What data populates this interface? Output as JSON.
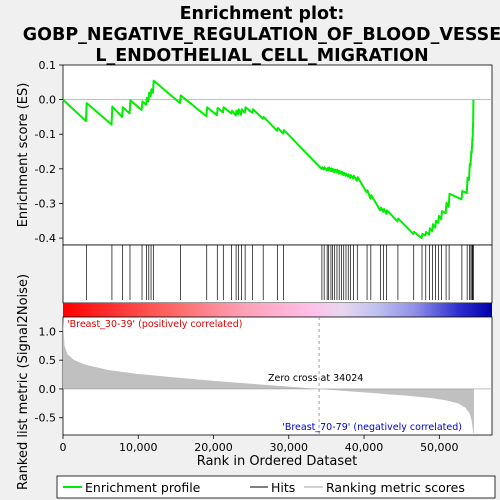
{
  "chart_data": {
    "type": "line",
    "title_lines": [
      "Enrichment plot:",
      "GOBP_NEGATIVE_REGULATION_OF_BLOOD_VESSE",
      "L_ENDOTHELIAL_CELL_MIGRATION"
    ],
    "xlabel": "Rank in Ordered Dataset",
    "ylabel_top": "Enrichment score (ES)",
    "ylabel_bottom": "Ranked list metric (Signal2Noise)",
    "xlim": [
      0,
      57000
    ],
    "x_ticks": [
      0,
      10000,
      20000,
      30000,
      40000,
      50000
    ],
    "x_tick_labels": [
      "0",
      "10,000",
      "20,000",
      "30,000",
      "40,000",
      "50,000"
    ],
    "es_ylim": [
      -0.42,
      0.1
    ],
    "es_ticks": [
      0.1,
      0.0,
      -0.1,
      -0.2,
      -0.3,
      -0.4
    ],
    "es_tick_labels": [
      "0.1",
      "0.0",
      "-0.1",
      "-0.2",
      "-0.3",
      "-0.4"
    ],
    "metric_ylim": [
      -0.8,
      1.25
    ],
    "metric_ticks": [
      1.0,
      0.5,
      0.0,
      -0.5
    ],
    "metric_tick_labels": [
      "1.0",
      "0.5",
      "0.0",
      "-0.5"
    ],
    "colors": {
      "es_line": "#00ee00",
      "hit": "#000000",
      "metric_fill": "#c0c0c0",
      "pos_label": "#dd0000",
      "neg_label": "#0000cc",
      "zero_line": "#888888"
    },
    "hits": [
      3100,
      6500,
      7900,
      8900,
      10500,
      11100,
      11400,
      11700,
      12000,
      15600,
      19100,
      20500,
      21300,
      22400,
      23000,
      23300,
      23700,
      24200,
      25200,
      26600,
      28500,
      29300,
      34400,
      34700,
      35100,
      35300,
      35600,
      35800,
      36100,
      36400,
      36700,
      37000,
      37300,
      37600,
      37900,
      38200,
      38600,
      39100,
      40400,
      40900,
      42200,
      42600,
      43000,
      44500,
      46600,
      47700,
      48200,
      48700,
      49100,
      49500,
      49900,
      50300,
      50900,
      51300,
      53000,
      53700,
      54000,
      54200,
      54350,
      54450,
      54520
    ],
    "es_curve": {
      "x": [
        0,
        3050,
        3150,
        6450,
        6550,
        7850,
        7950,
        8850,
        8950,
        10450,
        10550,
        11050,
        11150,
        11350,
        11450,
        11650,
        11750,
        11950,
        12050,
        15550,
        15650,
        19050,
        19150,
        20450,
        20550,
        21250,
        21350,
        22350,
        22450,
        22950,
        23050,
        23250,
        23350,
        23650,
        23750,
        24150,
        24250,
        25150,
        25250,
        26550,
        26650,
        28450,
        28550,
        29250,
        29350,
        34350,
        34450,
        34650,
        34750,
        35050,
        35150,
        35250,
        35350,
        35550,
        35650,
        35750,
        35850,
        36050,
        36150,
        36350,
        36450,
        36650,
        36750,
        36950,
        37050,
        37250,
        37350,
        37550,
        37650,
        37850,
        37950,
        38150,
        38250,
        38550,
        38650,
        39050,
        39150,
        40350,
        40450,
        40850,
        40950,
        42150,
        42250,
        42550,
        42650,
        42950,
        43050,
        44450,
        44550,
        46550,
        46650,
        47650,
        47750,
        48150,
        48250,
        48650,
        48750,
        49050,
        49150,
        49450,
        49550,
        49850,
        49950,
        50250,
        50350,
        50850,
        50950,
        51250,
        51350,
        52950,
        53050,
        53650,
        53750,
        53950,
        54050,
        54150,
        54250,
        54300,
        54400,
        54420,
        54480,
        54500,
        54530
      ],
      "y": [
        0.0,
        -0.062,
        -0.01,
        -0.072,
        -0.02,
        -0.05,
        -0.022,
        -0.04,
        -0.002,
        -0.03,
        -0.005,
        -0.015,
        0.005,
        -0.005,
        0.02,
        0.01,
        0.03,
        0.02,
        0.055,
        -0.01,
        0.012,
        -0.048,
        -0.022,
        -0.045,
        -0.024,
        -0.037,
        -0.022,
        -0.04,
        -0.032,
        -0.046,
        -0.032,
        -0.042,
        -0.028,
        -0.044,
        -0.028,
        -0.038,
        -0.022,
        -0.038,
        -0.028,
        -0.055,
        -0.05,
        -0.09,
        -0.082,
        -0.098,
        -0.088,
        -0.2,
        -0.196,
        -0.202,
        -0.196,
        -0.204,
        -0.198,
        -0.204,
        -0.196,
        -0.206,
        -0.199,
        -0.207,
        -0.2,
        -0.21,
        -0.202,
        -0.21,
        -0.202,
        -0.214,
        -0.206,
        -0.214,
        -0.208,
        -0.218,
        -0.212,
        -0.22,
        -0.214,
        -0.222,
        -0.216,
        -0.226,
        -0.218,
        -0.228,
        -0.22,
        -0.234,
        -0.224,
        -0.268,
        -0.262,
        -0.286,
        -0.276,
        -0.32,
        -0.312,
        -0.324,
        -0.316,
        -0.33,
        -0.32,
        -0.352,
        -0.344,
        -0.388,
        -0.382,
        -0.4,
        -0.388,
        -0.392,
        -0.382,
        -0.39,
        -0.372,
        -0.38,
        -0.36,
        -0.37,
        -0.35,
        -0.356,
        -0.336,
        -0.346,
        -0.322,
        -0.328,
        -0.298,
        -0.31,
        -0.272,
        -0.288,
        -0.264,
        -0.27,
        -0.226,
        -0.232,
        -0.186,
        -0.19,
        -0.15,
        -0.154,
        -0.11,
        -0.118,
        -0.07,
        -0.07,
        0.0
      ]
    },
    "metric_curve": {
      "x": [
        0,
        200,
        600,
        1500,
        3000,
        6000,
        10000,
        15000,
        20000,
        25000,
        30000,
        34024,
        38000,
        42000,
        46000,
        49000,
        51000,
        52500,
        53500,
        54000,
        54300,
        54500,
        54600
      ],
      "y": [
        1.2,
        0.75,
        0.6,
        0.5,
        0.42,
        0.33,
        0.26,
        0.2,
        0.14,
        0.09,
        0.04,
        0.0,
        -0.04,
        -0.08,
        -0.12,
        -0.16,
        -0.2,
        -0.25,
        -0.33,
        -0.42,
        -0.55,
        -0.75,
        -0.78
      ]
    },
    "heat_stops": [
      {
        "offset": 0,
        "color": "#ff0000"
      },
      {
        "offset": 0.1,
        "color": "#ff2a2a"
      },
      {
        "offset": 0.28,
        "color": "#ff7070"
      },
      {
        "offset": 0.42,
        "color": "#ffa0b8"
      },
      {
        "offset": 0.58,
        "color": "#ffc0e8"
      },
      {
        "offset": 0.65,
        "color": "#e8d8f0"
      },
      {
        "offset": 0.73,
        "color": "#c0c0f0"
      },
      {
        "offset": 0.82,
        "color": "#9090e8"
      },
      {
        "offset": 0.92,
        "color": "#3030d0"
      },
      {
        "offset": 1,
        "color": "#0000aa"
      }
    ],
    "zero_cross_x": 34024,
    "zero_cross_label": "Zero cross at 34024",
    "pos_corr_label": "'Breast_30-39' (positively correlated)",
    "neg_corr_label": "'Breast_70-79' (negatively correlated)",
    "legend": [
      "Enrichment profile",
      "Hits",
      "Ranking metric scores"
    ]
  }
}
